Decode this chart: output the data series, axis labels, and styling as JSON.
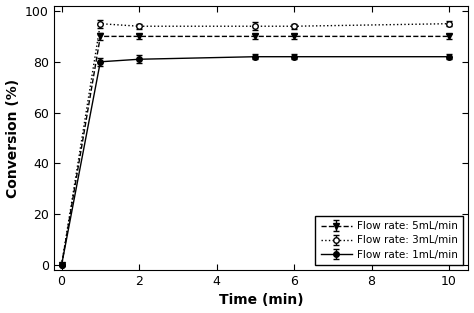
{
  "series": {
    "5mL": {
      "x": [
        0,
        1,
        2,
        5,
        6,
        10
      ],
      "y": [
        0,
        90,
        90,
        90,
        90,
        90
      ],
      "yerr": [
        0,
        1.5,
        1.0,
        1.0,
        1.0,
        1.0
      ],
      "label": "Flow rate: 5mL/min",
      "color": "#000000",
      "linestyle": "dashed",
      "marker": "v",
      "markersize": 4,
      "markerfill": "black"
    },
    "3mL": {
      "x": [
        0,
        1,
        2,
        5,
        6,
        10
      ],
      "y": [
        0,
        95,
        94,
        94,
        94,
        95
      ],
      "yerr": [
        0,
        1.5,
        1.0,
        1.5,
        1.0,
        1.0
      ],
      "label": "Flow rate: 3mL/min",
      "color": "#000000",
      "linestyle": "dotted",
      "marker": "o",
      "markersize": 4,
      "markerfill": "white"
    },
    "1mL": {
      "x": [
        0,
        1,
        2,
        5,
        6,
        10
      ],
      "y": [
        0,
        80,
        81,
        82,
        82,
        82
      ],
      "yerr": [
        0,
        1.5,
        1.5,
        1.0,
        1.0,
        1.0
      ],
      "label": "Flow rate: 1mL/min",
      "color": "#000000",
      "linestyle": "solid",
      "marker": "o",
      "markersize": 4,
      "markerfill": "black"
    }
  },
  "xlabel": "Time (min)",
  "ylabel": "Conversion (%)",
  "xlim": [
    -0.2,
    10.5
  ],
  "ylim": [
    -2,
    102
  ],
  "xticks": [
    0,
    2,
    4,
    6,
    8,
    10
  ],
  "yticks": [
    0,
    20,
    40,
    60,
    80,
    100
  ],
  "background_color": "#ffffff"
}
